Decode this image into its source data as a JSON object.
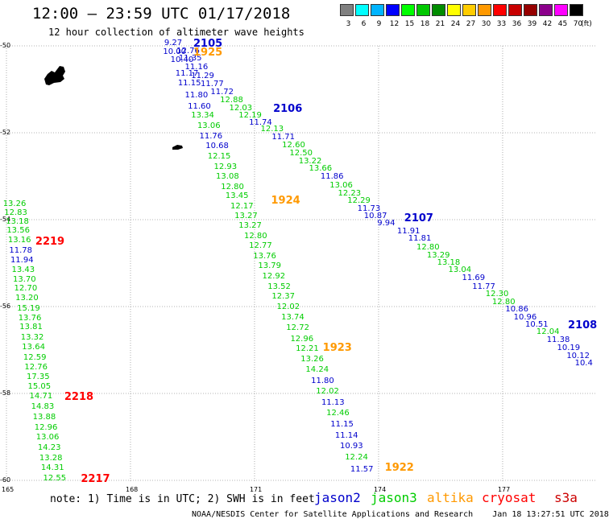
{
  "title": "12:00 – 23:59 UTC 01/17/2018",
  "subtitle": "12 hour collection of altimeter wave heights",
  "legend": {
    "unit": "(ft)",
    "items": [
      {
        "label": "3",
        "color": "#808080"
      },
      {
        "label": "6",
        "color": "#00ffff"
      },
      {
        "label": "9",
        "color": "#00b4ff"
      },
      {
        "label": "12",
        "color": "#0000ff"
      },
      {
        "label": "15",
        "color": "#00ff00"
      },
      {
        "label": "18",
        "color": "#00c800"
      },
      {
        "label": "21",
        "color": "#008c00"
      },
      {
        "label": "24",
        "color": "#ffff00"
      },
      {
        "label": "27",
        "color": "#ffcc00"
      },
      {
        "label": "30",
        "color": "#ff9900"
      },
      {
        "label": "33",
        "color": "#ff0000"
      },
      {
        "label": "36",
        "color": "#c80000"
      },
      {
        "label": "39",
        "color": "#960000"
      },
      {
        "label": "42",
        "color": "#8c008c"
      },
      {
        "label": "45",
        "color": "#ff00ff"
      },
      {
        "label": "70",
        "color": "#000000"
      }
    ]
  },
  "axes": {
    "lon_ticks": [
      "165",
      "168",
      "171",
      "174",
      "177"
    ],
    "lat_ticks": [
      "-50",
      "-52",
      "-54",
      "-56",
      "-58",
      "-60"
    ]
  },
  "colors": {
    "jason2": "#0000cc",
    "jason3": "#00cc00",
    "altika": "#ff9900",
    "cryosat": "#ff0000",
    "s3a": "#cc0000",
    "grid": "#9a9a9a",
    "land": "#000000"
  },
  "tracks": [
    {
      "name": "pass 2219/2218/2217",
      "points": [
        {
          "lon": 165.15,
          "lat": -53.65,
          "v": "13.26",
          "c": "jason3"
        },
        {
          "lon": 165.18,
          "lat": -53.85,
          "v": "12.83",
          "c": "jason3"
        },
        {
          "lon": 165.22,
          "lat": -54.05,
          "v": "13.18",
          "c": "jason3"
        },
        {
          "lon": 165.24,
          "lat": -54.25,
          "v": "13.56",
          "c": "jason3"
        },
        {
          "lon": 165.27,
          "lat": -54.48,
          "v": "13.16",
          "c": "jason3"
        },
        {
          "lon": 165.3,
          "lat": -54.72,
          "v": "11.78",
          "c": "jason2"
        },
        {
          "lon": 165.33,
          "lat": -54.94,
          "v": "11.94",
          "c": "jason2"
        },
        {
          "lon": 165.36,
          "lat": -55.16,
          "v": "13.43",
          "c": "jason3"
        },
        {
          "lon": 165.39,
          "lat": -55.38,
          "v": "13.70",
          "c": "jason3"
        },
        {
          "lon": 165.42,
          "lat": -55.6,
          "v": "12.70",
          "c": "jason3"
        },
        {
          "lon": 165.45,
          "lat": -55.82,
          "v": "13.20",
          "c": "jason3"
        },
        {
          "lon": 165.49,
          "lat": -56.05,
          "v": "15.19",
          "c": "jason3"
        },
        {
          "lon": 165.52,
          "lat": -56.27,
          "v": "13.76",
          "c": "jason3"
        },
        {
          "lon": 165.55,
          "lat": -56.49,
          "v": "13.81",
          "c": "jason3"
        },
        {
          "lon": 165.58,
          "lat": -56.72,
          "v": "13.32",
          "c": "jason3"
        },
        {
          "lon": 165.61,
          "lat": -56.95,
          "v": "13.64",
          "c": "jason3"
        },
        {
          "lon": 165.64,
          "lat": -57.18,
          "v": "12.59",
          "c": "jason3"
        },
        {
          "lon": 165.67,
          "lat": -57.4,
          "v": "12.76",
          "c": "jason3"
        },
        {
          "lon": 165.72,
          "lat": -57.63,
          "v": "17.35",
          "c": "jason3"
        },
        {
          "lon": 165.75,
          "lat": -57.86,
          "v": "15.05",
          "c": "jason3"
        },
        {
          "lon": 165.79,
          "lat": -58.08,
          "v": "14.71",
          "c": "jason3"
        },
        {
          "lon": 165.83,
          "lat": -58.31,
          "v": "14.83",
          "c": "jason3"
        },
        {
          "lon": 165.87,
          "lat": -58.55,
          "v": "13.88",
          "c": "jason3"
        },
        {
          "lon": 165.91,
          "lat": -58.79,
          "v": "12.96",
          "c": "jason3"
        },
        {
          "lon": 165.95,
          "lat": -59.02,
          "v": "13.06",
          "c": "jason3"
        },
        {
          "lon": 165.99,
          "lat": -59.26,
          "v": "14.23",
          "c": "jason3"
        },
        {
          "lon": 166.03,
          "lat": -59.5,
          "v": "13.28",
          "c": "jason3"
        },
        {
          "lon": 166.07,
          "lat": -59.73,
          "v": "14.31",
          "c": "jason3"
        },
        {
          "lon": 166.12,
          "lat": -59.96,
          "v": "12.55",
          "c": "jason3"
        }
      ]
    },
    {
      "name": "pass 2105/1924/1923/1922",
      "points": [
        {
          "lon": 169.05,
          "lat": -49.95,
          "v": "9.27",
          "c": "jason2"
        },
        {
          "lon": 169.02,
          "lat": -50.15,
          "v": "10.00",
          "c": "jason2"
        },
        {
          "lon": 169.2,
          "lat": -50.33,
          "v": "10.40",
          "c": "jason2"
        },
        {
          "lon": 169.32,
          "lat": -50.65,
          "v": "11.17",
          "c": "jason2"
        },
        {
          "lon": 169.38,
          "lat": -50.87,
          "v": "11.15",
          "c": "jason2"
        },
        {
          "lon": 169.55,
          "lat": -51.15,
          "v": "11.80",
          "c": "jason2"
        },
        {
          "lon": 169.62,
          "lat": -51.4,
          "v": "11.60",
          "c": "jason2"
        },
        {
          "lon": 169.7,
          "lat": -51.62,
          "v": "13.34",
          "c": "jason3"
        },
        {
          "lon": 169.85,
          "lat": -51.85,
          "v": "13.06",
          "c": "jason3"
        },
        {
          "lon": 169.9,
          "lat": -52.1,
          "v": "11.76",
          "c": "jason2"
        },
        {
          "lon": 170.05,
          "lat": -52.32,
          "v": "10.68",
          "c": "jason2"
        },
        {
          "lon": 170.1,
          "lat": -52.55,
          "v": "12.15",
          "c": "jason3"
        },
        {
          "lon": 170.25,
          "lat": -52.8,
          "v": "12.93",
          "c": "jason3"
        },
        {
          "lon": 170.3,
          "lat": -53.02,
          "v": "13.08",
          "c": "jason3"
        },
        {
          "lon": 170.42,
          "lat": -53.25,
          "v": "12.80",
          "c": "jason3"
        },
        {
          "lon": 170.53,
          "lat": -53.47,
          "v": "13.45",
          "c": "jason3"
        },
        {
          "lon": 170.65,
          "lat": -53.7,
          "v": "12.17",
          "c": "jason3"
        },
        {
          "lon": 170.75,
          "lat": -53.93,
          "v": "13.27",
          "c": "jason3"
        },
        {
          "lon": 170.85,
          "lat": -54.15,
          "v": "13.27",
          "c": "jason3"
        },
        {
          "lon": 170.98,
          "lat": -54.38,
          "v": "12.80",
          "c": "jason3"
        },
        {
          "lon": 171.1,
          "lat": -54.62,
          "v": "12.77",
          "c": "jason3"
        },
        {
          "lon": 171.2,
          "lat": -54.85,
          "v": "13.76",
          "c": "jason3"
        },
        {
          "lon": 171.32,
          "lat": -55.08,
          "v": "13.79",
          "c": "jason3"
        },
        {
          "lon": 171.42,
          "lat": -55.32,
          "v": "12.92",
          "c": "jason3"
        },
        {
          "lon": 171.55,
          "lat": -55.55,
          "v": "13.52",
          "c": "jason3"
        },
        {
          "lon": 171.65,
          "lat": -55.78,
          "v": "12.37",
          "c": "jason3"
        },
        {
          "lon": 171.77,
          "lat": -56.02,
          "v": "12.02",
          "c": "jason3"
        },
        {
          "lon": 171.88,
          "lat": -56.25,
          "v": "13.74",
          "c": "jason3"
        },
        {
          "lon": 172.0,
          "lat": -56.5,
          "v": "12.72",
          "c": "jason3"
        },
        {
          "lon": 172.1,
          "lat": -56.75,
          "v": "12.96",
          "c": "jason3"
        },
        {
          "lon": 172.23,
          "lat": -56.98,
          "v": "12.21",
          "c": "jason3"
        },
        {
          "lon": 172.35,
          "lat": -57.22,
          "v": "13.26",
          "c": "jason3"
        },
        {
          "lon": 172.47,
          "lat": -57.47,
          "v": "14.24",
          "c": "jason3"
        },
        {
          "lon": 172.6,
          "lat": -57.72,
          "v": "11.80",
          "c": "jason2"
        },
        {
          "lon": 172.72,
          "lat": -57.97,
          "v": "12.02",
          "c": "jason3"
        },
        {
          "lon": 172.85,
          "lat": -58.22,
          "v": "11.13",
          "c": "jason2"
        },
        {
          "lon": 172.97,
          "lat": -58.47,
          "v": "12.46",
          "c": "jason3"
        },
        {
          "lon": 173.07,
          "lat": -58.72,
          "v": "11.15",
          "c": "jason2"
        },
        {
          "lon": 173.18,
          "lat": -58.98,
          "v": "11.14",
          "c": "jason2"
        },
        {
          "lon": 173.3,
          "lat": -59.23,
          "v": "10.93",
          "c": "jason2"
        },
        {
          "lon": 173.42,
          "lat": -59.48,
          "v": "12.24",
          "c": "jason3"
        },
        {
          "lon": 173.55,
          "lat": -59.76,
          "v": "11.57",
          "c": "jason2"
        }
      ]
    },
    {
      "name": "pass 1925/2106/2107/2108",
      "points": [
        {
          "lon": 169.35,
          "lat": -50.13,
          "v": "12.76",
          "c": "jason2"
        },
        {
          "lon": 169.4,
          "lat": -50.3,
          "v": "11.35",
          "c": "jason2"
        },
        {
          "lon": 169.55,
          "lat": -50.5,
          "v": "11.16",
          "c": "jason2"
        },
        {
          "lon": 169.7,
          "lat": -50.7,
          "v": "11.29",
          "c": "jason2"
        },
        {
          "lon": 169.93,
          "lat": -50.88,
          "v": "11.77",
          "c": "jason2"
        },
        {
          "lon": 170.17,
          "lat": -51.07,
          "v": "11.72",
          "c": "jason2"
        },
        {
          "lon": 170.4,
          "lat": -51.26,
          "v": "12.88",
          "c": "jason3"
        },
        {
          "lon": 170.62,
          "lat": -51.45,
          "v": "12.03",
          "c": "jason3"
        },
        {
          "lon": 170.85,
          "lat": -51.62,
          "v": "12.19",
          "c": "jason3"
        },
        {
          "lon": 171.1,
          "lat": -51.78,
          "v": "11.74",
          "c": "jason2"
        },
        {
          "lon": 171.38,
          "lat": -51.93,
          "v": "12.13",
          "c": "jason3"
        },
        {
          "lon": 171.65,
          "lat": -52.12,
          "v": "11.71",
          "c": "jason2"
        },
        {
          "lon": 171.9,
          "lat": -52.3,
          "v": "12.60",
          "c": "jason3"
        },
        {
          "lon": 172.08,
          "lat": -52.48,
          "v": "12.50",
          "c": "jason3"
        },
        {
          "lon": 172.3,
          "lat": -52.66,
          "v": "13.22",
          "c": "jason3"
        },
        {
          "lon": 172.55,
          "lat": -52.84,
          "v": "13.66",
          "c": "jason3"
        },
        {
          "lon": 172.83,
          "lat": -53.02,
          "v": "11.86",
          "c": "jason2"
        },
        {
          "lon": 173.05,
          "lat": -53.22,
          "v": "13.06",
          "c": "jason3"
        },
        {
          "lon": 173.25,
          "lat": -53.4,
          "v": "12.23",
          "c": "jason3"
        },
        {
          "lon": 173.48,
          "lat": -53.57,
          "v": "12.29",
          "c": "jason3"
        },
        {
          "lon": 173.72,
          "lat": -53.75,
          "v": "11.73",
          "c": "jason2"
        },
        {
          "lon": 173.88,
          "lat": -53.93,
          "v": "10.87",
          "c": "jason2"
        },
        {
          "lon": 174.2,
          "lat": -54.1,
          "v": "9.94",
          "c": "jason2"
        },
        {
          "lon": 174.68,
          "lat": -54.27,
          "v": "11.91",
          "c": "jason2"
        },
        {
          "lon": 174.95,
          "lat": -54.45,
          "v": "11.81",
          "c": "jason2"
        },
        {
          "lon": 175.15,
          "lat": -54.65,
          "v": "12.80",
          "c": "jason3"
        },
        {
          "lon": 175.4,
          "lat": -54.83,
          "v": "13.29",
          "c": "jason3"
        },
        {
          "lon": 175.65,
          "lat": -55.0,
          "v": "13.18",
          "c": "jason3"
        },
        {
          "lon": 175.92,
          "lat": -55.17,
          "v": "13.04",
          "c": "jason3"
        },
        {
          "lon": 176.25,
          "lat": -55.35,
          "v": "11.69",
          "c": "jason2"
        },
        {
          "lon": 176.5,
          "lat": -55.55,
          "v": "11.77",
          "c": "jason2"
        },
        {
          "lon": 176.82,
          "lat": -55.72,
          "v": "12.30",
          "c": "jason3"
        },
        {
          "lon": 176.98,
          "lat": -55.9,
          "v": "12.80",
          "c": "jason3"
        },
        {
          "lon": 177.3,
          "lat": -56.07,
          "v": "10.86",
          "c": "jason2"
        },
        {
          "lon": 177.5,
          "lat": -56.25,
          "v": "10.96",
          "c": "jason2"
        },
        {
          "lon": 177.78,
          "lat": -56.42,
          "v": "10.51",
          "c": "jason2"
        },
        {
          "lon": 178.05,
          "lat": -56.6,
          "v": "12.04",
          "c": "jason3"
        },
        {
          "lon": 178.3,
          "lat": -56.78,
          "v": "11.38",
          "c": "jason2"
        },
        {
          "lon": 178.55,
          "lat": -56.96,
          "v": "10.19",
          "c": "jason2"
        },
        {
          "lon": 178.78,
          "lat": -57.14,
          "v": "10.12",
          "c": "jason2"
        },
        {
          "lon": 178.98,
          "lat": -57.32,
          "v": "10.4",
          "c": "jason2"
        }
      ]
    }
  ],
  "pass_labels": [
    {
      "text": "2105",
      "lon": 169.52,
      "lat": -49.95,
      "c": "jason2"
    },
    {
      "text": "1925",
      "lon": 169.52,
      "lat": -50.15,
      "c": "altika"
    },
    {
      "text": "2106",
      "lon": 171.45,
      "lat": -51.45,
      "c": "jason2"
    },
    {
      "text": "1924",
      "lon": 171.4,
      "lat": -53.55,
      "c": "altika"
    },
    {
      "text": "2219",
      "lon": 165.7,
      "lat": -54.5,
      "c": "cryosat"
    },
    {
      "text": "2107",
      "lon": 174.62,
      "lat": -53.97,
      "c": "jason2"
    },
    {
      "text": "2108",
      "lon": 178.58,
      "lat": -56.42,
      "c": "jason2"
    },
    {
      "text": "1923",
      "lon": 172.65,
      "lat": -56.95,
      "c": "altika"
    },
    {
      "text": "2218",
      "lon": 166.4,
      "lat": -58.08,
      "c": "cryosat"
    },
    {
      "text": "1922",
      "lon": 174.15,
      "lat": -59.7,
      "c": "altika"
    },
    {
      "text": "2217",
      "lon": 166.8,
      "lat": -59.96,
      "c": "cryosat"
    }
  ],
  "footer": {
    "note": "note:  1) Time is in UTC; 2) SWH is in feet",
    "satellites": [
      {
        "name": "jason2",
        "c": "jason2"
      },
      {
        "name": "jason3",
        "c": "jason3"
      },
      {
        "name": "altika",
        "c": "altika"
      },
      {
        "name": "cryosat",
        "c": "cryosat"
      },
      {
        "name": "s3a",
        "c": "s3a"
      }
    ],
    "credit": "NOAA/NESDIS Center for Satellite Applications and Research    Jan 18 13:27:51 UTC 2018"
  }
}
